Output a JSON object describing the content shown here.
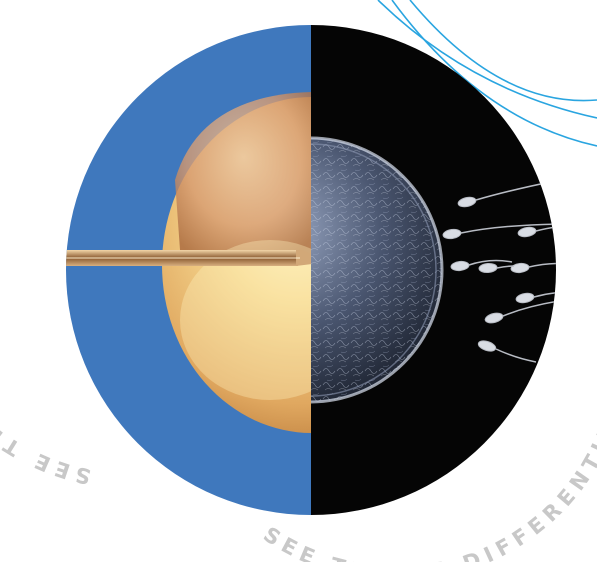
{
  "slogan_left": "SEE THINGS DIFFERENTLY...",
  "slogan_right": "SEE THINGS DIFFERENTLY...",
  "colors": {
    "left_half": "#3f78bd",
    "right_half": "#050505",
    "text": "#c8c8c8",
    "swoosh": "#2aa5e0"
  },
  "icons": {
    "egg_cell": "ovum-illustration",
    "egg_microscope": "egg-microscope-photo",
    "needle": "micropipette-needle",
    "sperm": "sperm-cell"
  }
}
